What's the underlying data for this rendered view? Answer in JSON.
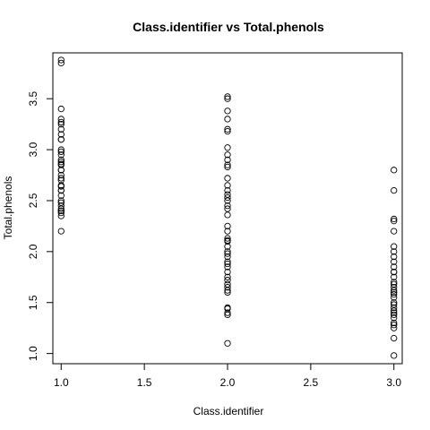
{
  "chart_data": {
    "type": "scatter",
    "title": "Class.identifier vs Total.phenols",
    "xlabel": "Class.identifier",
    "ylabel": "Total.phenols",
    "xlim": [
      0.95,
      3.05
    ],
    "ylim": [
      0.9,
      3.95
    ],
    "x_ticks": [
      1.0,
      1.5,
      2.0,
      2.5,
      3.0
    ],
    "x_tick_labels": [
      "1.0",
      "1.5",
      "2.0",
      "2.5",
      "3.0"
    ],
    "y_ticks": [
      1.0,
      1.5,
      2.0,
      2.5,
      3.0,
      3.5
    ],
    "y_tick_labels": [
      "1.0",
      "1.5",
      "2.0",
      "2.5",
      "3.0",
      "3.5"
    ],
    "grid": false,
    "marker": "open-circle",
    "color": "#000000",
    "series": [
      {
        "x": 1.0,
        "y": [
          3.88,
          3.85,
          3.4,
          3.3,
          3.27,
          3.25,
          3.2,
          3.15,
          3.1,
          3.1,
          3.0,
          2.98,
          2.95,
          2.9,
          2.88,
          2.86,
          2.85,
          2.8,
          2.8,
          2.75,
          2.72,
          2.7,
          2.65,
          2.64,
          2.6,
          2.6,
          2.55,
          2.5,
          2.48,
          2.45,
          2.42,
          2.4,
          2.4,
          2.38,
          2.35,
          2.2
        ]
      },
      {
        "x": 2.0,
        "y": [
          3.52,
          3.5,
          3.38,
          3.3,
          3.2,
          3.18,
          3.02,
          2.95,
          2.9,
          2.85,
          2.83,
          2.72,
          2.65,
          2.6,
          2.56,
          2.53,
          2.5,
          2.45,
          2.42,
          2.36,
          2.25,
          2.2,
          2.13,
          2.11,
          2.1,
          2.05,
          2.0,
          1.98,
          1.95,
          1.9,
          1.88,
          1.85,
          1.8,
          1.75,
          1.72,
          1.68,
          1.65,
          1.62,
          1.6,
          1.45,
          1.44,
          1.4,
          1.38,
          1.1
        ]
      },
      {
        "x": 3.0,
        "y": [
          2.8,
          2.6,
          2.32,
          2.3,
          2.2,
          2.05,
          2.0,
          1.95,
          1.9,
          1.85,
          1.8,
          1.8,
          1.75,
          1.7,
          1.68,
          1.65,
          1.62,
          1.6,
          1.58,
          1.55,
          1.5,
          1.48,
          1.45,
          1.42,
          1.4,
          1.38,
          1.35,
          1.3,
          1.28,
          1.25,
          1.15,
          0.98
        ]
      }
    ]
  }
}
